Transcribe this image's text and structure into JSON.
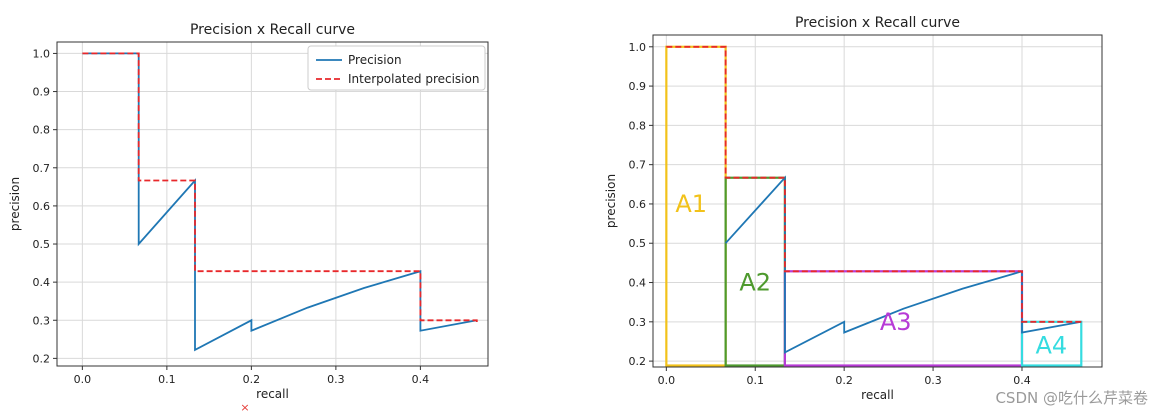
{
  "chart_data": [
    {
      "type": "line",
      "title": "Precision x Recall curve",
      "xlabel": "recall",
      "ylabel": "precision",
      "xlim": [
        -0.03,
        0.48
      ],
      "ylim": [
        0.18,
        1.03
      ],
      "xticks": [
        0.0,
        0.1,
        0.2,
        0.3,
        0.4
      ],
      "xtick_labels": [
        "0.0",
        "0.1",
        "0.2",
        "0.3",
        "0.4"
      ],
      "yticks": [
        0.2,
        0.3,
        0.4,
        0.5,
        0.6,
        0.7,
        0.8,
        0.9,
        1.0
      ],
      "ytick_labels": [
        "0.2",
        "0.3",
        "0.4",
        "0.5",
        "0.6",
        "0.7",
        "0.8",
        "0.9",
        "1.0"
      ],
      "grid": true,
      "legend": "top-right",
      "series": [
        {
          "name": "Precision",
          "color": "#1f77b4",
          "style": "solid",
          "x": [
            0.0,
            0.0667,
            0.0667,
            0.1333,
            0.1333,
            0.2,
            0.2,
            0.2667,
            0.3333,
            0.4,
            0.4,
            0.4667
          ],
          "y": [
            1.0,
            1.0,
            0.5,
            0.6667,
            0.2222,
            0.3,
            0.2727,
            0.3333,
            0.3846,
            0.4286,
            0.2727,
            0.3
          ]
        },
        {
          "name": "Interpolated precision",
          "color": "#e8282b",
          "style": "dashed",
          "x": [
            0.0,
            0.0667,
            0.0667,
            0.1333,
            0.1333,
            0.4,
            0.4,
            0.4667,
            0.4667
          ],
          "y": [
            1.0,
            1.0,
            0.6667,
            0.6667,
            0.4286,
            0.4286,
            0.3,
            0.3,
            0.29
          ]
        }
      ]
    },
    {
      "type": "line",
      "title": "Precision x Recall curve",
      "xlabel": "recall",
      "ylabel": "precision",
      "xlim": [
        -0.015,
        0.49
      ],
      "ylim": [
        0.185,
        1.03
      ],
      "xticks": [
        0.0,
        0.1,
        0.2,
        0.3,
        0.4
      ],
      "xtick_labels": [
        "0.0",
        "0.1",
        "0.2",
        "0.3",
        "0.4"
      ],
      "yticks": [
        0.2,
        0.3,
        0.4,
        0.5,
        0.6,
        0.7,
        0.8,
        0.9,
        1.0
      ],
      "ytick_labels": [
        "0.2",
        "0.3",
        "0.4",
        "0.5",
        "0.6",
        "0.7",
        "0.8",
        "0.9",
        "1.0"
      ],
      "grid": true,
      "series": [
        {
          "color": "#1f77b4",
          "style": "solid",
          "x": [
            0.0667,
            0.1333,
            0.1333,
            0.2,
            0.2,
            0.2667,
            0.3333,
            0.4,
            0.4,
            0.4667
          ],
          "y": [
            0.5,
            0.6667,
            0.2222,
            0.3,
            0.2727,
            0.3333,
            0.3846,
            0.4286,
            0.2727,
            0.3
          ]
        },
        {
          "color": "#e8282b",
          "style": "dashed",
          "x": [
            0.0,
            0.0667,
            0.0667,
            0.1333,
            0.1333,
            0.4,
            0.4,
            0.4667
          ],
          "y": [
            1.0,
            1.0,
            0.6667,
            0.6667,
            0.4286,
            0.4286,
            0.3,
            0.3
          ]
        }
      ],
      "areas": [
        {
          "label": "A1",
          "x0": 0.0,
          "x1": 0.0667,
          "y": 1.0,
          "color": "#f2c21a"
        },
        {
          "label": "A2",
          "x0": 0.0667,
          "x1": 0.1333,
          "y": 0.6667,
          "color": "#4e9a2e"
        },
        {
          "label": "A3",
          "x0": 0.1333,
          "x1": 0.4,
          "y": 0.4286,
          "color": "#b73ad6"
        },
        {
          "label": "A4",
          "x0": 0.4,
          "x1": 0.4667,
          "y": 0.3,
          "color": "#35dce0"
        }
      ]
    }
  ],
  "watermark": "CSDN @吃什么芹菜卷"
}
